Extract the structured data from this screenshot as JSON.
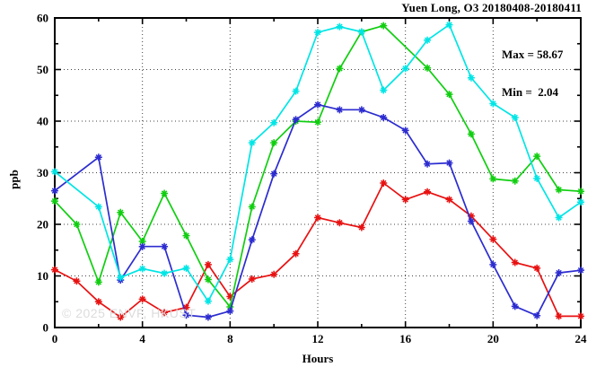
{
  "header": {
    "title": "Yuen Long, O3 20180408-20180411"
  },
  "annotation": {
    "max_label": "Max = 58.67",
    "min_label": "Min =  2.04"
  },
  "watermark": "© 2025  ENVF, HKUST",
  "chart_data": {
    "type": "line",
    "title": "Yuen Long, O3 20180408-20180411",
    "xlabel": "Hours",
    "ylabel": "ppb",
    "xlim": [
      0,
      24
    ],
    "ylim": [
      0,
      60
    ],
    "grid": true,
    "legend_position": "none",
    "annotations": {
      "max": 58.67,
      "min": 2.04
    },
    "x_tick_labels": [
      "0",
      "4",
      "8",
      "12",
      "16",
      "20",
      "24"
    ],
    "x_major_ticks": [
      0,
      4,
      8,
      12,
      16,
      20,
      24
    ],
    "x_minor_ticks": [
      2,
      6,
      10,
      14,
      18,
      22
    ],
    "y_tick_labels": [
      "0",
      "10",
      "20",
      "30",
      "40",
      "50",
      "60"
    ],
    "y_major_ticks": [
      0,
      10,
      20,
      30,
      40,
      50,
      60
    ],
    "y_minor_ticks": [
      5,
      15,
      25,
      35,
      45,
      55
    ],
    "x": [
      0,
      1,
      2,
      3,
      4,
      5,
      6,
      7,
      8,
      9,
      10,
      11,
      12,
      13,
      14,
      15,
      16,
      17,
      18,
      19,
      20,
      21,
      22,
      23,
      24
    ],
    "series": [
      {
        "name": "red",
        "color": "#e81111",
        "values": [
          11.2,
          9.0,
          5.0,
          2.0,
          5.5,
          2.9,
          3.9,
          12.2,
          6.0,
          9.4,
          10.3,
          14.3,
          21.3,
          20.3,
          19.4,
          28.0,
          24.8,
          26.3,
          24.8,
          21.6,
          17.1,
          12.6,
          11.5,
          2.2,
          2.2
        ]
      },
      {
        "name": "green",
        "color": "#10ce10",
        "values": [
          24.5,
          20.0,
          8.8,
          22.3,
          16.7,
          26.0,
          17.8,
          9.3,
          4.0,
          23.4,
          35.8,
          40.0,
          39.8,
          50.2,
          57.3,
          58.5,
          null,
          50.3,
          45.2,
          37.5,
          28.8,
          28.4,
          33.2,
          26.7,
          26.4
        ]
      },
      {
        "name": "blue",
        "color": "#2c2cd0",
        "values": [
          26.5,
          null,
          33.0,
          9.2,
          15.7,
          15.7,
          2.4,
          2.0,
          3.2,
          17.0,
          29.8,
          40.3,
          43.2,
          42.2,
          42.2,
          40.7,
          38.2,
          31.7,
          31.9,
          20.6,
          12.2,
          4.1,
          2.3,
          10.6,
          11.1
        ]
      },
      {
        "name": "cyan",
        "color": "#00e5e5",
        "values": [
          30.2,
          null,
          23.4,
          9.7,
          11.4,
          10.5,
          11.5,
          5.1,
          13.2,
          35.8,
          39.7,
          45.8,
          57.2,
          58.3,
          57.3,
          46.0,
          50.2,
          55.7,
          58.67,
          48.4,
          43.4,
          40.7,
          28.9,
          21.3,
          24.3
        ]
      }
    ]
  }
}
